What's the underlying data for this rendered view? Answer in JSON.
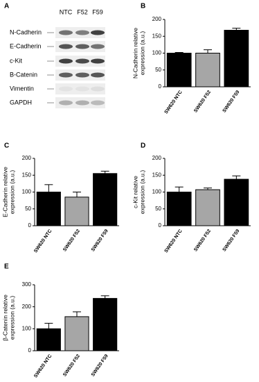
{
  "blot": {
    "panel": "A",
    "lanes": [
      "NTC",
      "F52",
      "F59"
    ],
    "rows": [
      "N-Cadherin",
      "E-Cadherin",
      "c-Kit",
      "B-Catenin",
      "Vimentin",
      "GAPDH"
    ]
  },
  "chart_data": [
    {
      "type": "bar",
      "panel": "B",
      "ylabel": [
        "N-Cadherin relative",
        "expression (a.u.)"
      ],
      "categories": [
        "SW620 NTC",
        "SW620 F52",
        "SW620 F59"
      ],
      "values": [
        100,
        100,
        168
      ],
      "errors": [
        2,
        10,
        6
      ],
      "colors": [
        "#000000",
        "#a6a6a6",
        "#000000"
      ],
      "ylim": [
        0,
        200
      ],
      "yticks": [
        0,
        50,
        100,
        150,
        200
      ]
    },
    {
      "type": "bar",
      "panel": "C",
      "ylabel": [
        "E-Cadherin relative",
        "expression (a.u.)"
      ],
      "categories": [
        "SW620 NTC",
        "SW620 F52",
        "SW620 F59"
      ],
      "values": [
        100,
        85,
        155
      ],
      "errors": [
        22,
        15,
        7
      ],
      "colors": [
        "#000000",
        "#a6a6a6",
        "#000000"
      ],
      "ylim": [
        0,
        200
      ],
      "yticks": [
        0,
        50,
        100,
        150,
        200
      ]
    },
    {
      "type": "bar",
      "panel": "D",
      "ylabel": [
        "c-Kit relative",
        "expression (a.u.)"
      ],
      "categories": [
        "SW620 NTC",
        "SW620 F52",
        "SW620 F59"
      ],
      "values": [
        100,
        107,
        138
      ],
      "errors": [
        15,
        5,
        10
      ],
      "colors": [
        "#000000",
        "#a6a6a6",
        "#000000"
      ],
      "ylim": [
        0,
        200
      ],
      "yticks": [
        0,
        50,
        100,
        150,
        200
      ]
    },
    {
      "type": "bar",
      "panel": "E",
      "ylabel": [
        "β-Catenin relative",
        "expression (a.u.)"
      ],
      "categories": [
        "SW620 NTC",
        "SW620 F52",
        "SW620 F59"
      ],
      "values": [
        100,
        155,
        238
      ],
      "errors": [
        25,
        22,
        12
      ],
      "colors": [
        "#000000",
        "#a6a6a6",
        "#000000"
      ],
      "ylim": [
        0,
        300
      ],
      "yticks": [
        0,
        100,
        200,
        300
      ]
    }
  ]
}
